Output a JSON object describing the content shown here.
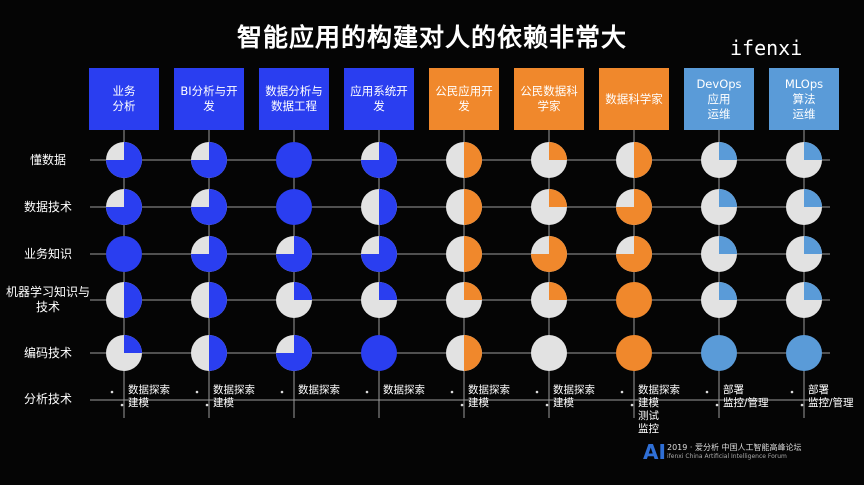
{
  "title": "智能应用的构建对人的依赖非常大",
  "brand": "ifenxi",
  "colors": {
    "blue": "#2a3ef0",
    "orange": "#f0882c",
    "steel": "#5a9bd8",
    "pieBase": "#e2e2e2"
  },
  "columns": [
    {
      "label": "业务\n分析",
      "color": "blue"
    },
    {
      "label": "BI分析与开\n发",
      "color": "blue"
    },
    {
      "label": "数据分析与\n数据工程",
      "color": "blue"
    },
    {
      "label": "应用系统开\n发",
      "color": "blue"
    },
    {
      "label": "公民应用开\n发",
      "color": "orange"
    },
    {
      "label": "公民数据科\n学家",
      "color": "orange"
    },
    {
      "label": "数据科学家",
      "color": "orange"
    },
    {
      "label": "DevOps\n应用\n运维",
      "color": "steel"
    },
    {
      "label": "MLOps\n算法\n运维",
      "color": "steel"
    }
  ],
  "rows": [
    {
      "label": "懂数据",
      "levels": [
        0.75,
        0.75,
        1,
        0.75,
        0.5,
        0.25,
        0.5,
        0.25,
        0.25
      ]
    },
    {
      "label": "数据技术",
      "levels": [
        0.75,
        0.75,
        1,
        0.5,
        0.5,
        0.25,
        0.75,
        0.25,
        0.25
      ]
    },
    {
      "label": "业务知识",
      "levels": [
        1,
        0.75,
        0.75,
        0.75,
        0.5,
        0.75,
        0.75,
        0.25,
        0.25
      ]
    },
    {
      "label": "机器学习知识与\n技术",
      "levels": [
        0.5,
        0.5,
        0.25,
        0.25,
        0.25,
        0.25,
        1,
        0.25,
        0.25
      ]
    },
    {
      "label": "编码技术",
      "levels": [
        0.25,
        0.5,
        0.75,
        1,
        0.5,
        0,
        1,
        1,
        1
      ]
    }
  ],
  "analysis": {
    "label": "分析技术",
    "items": [
      "数据探索\n建模",
      "数据探索\n建模",
      "数据探索",
      "数据探索",
      "数据探索\n建模",
      "数据探索\n建模",
      "数据探索\n建模\n测试\n监控",
      "部署\n监控/管理",
      "部署\n监控/管理"
    ]
  },
  "footer": {
    "logo": "AI",
    "line1": "2019 · 爱分析 中国人工智能高峰论坛",
    "line2": "ifenxi China Artificial Intelligence Forum"
  }
}
